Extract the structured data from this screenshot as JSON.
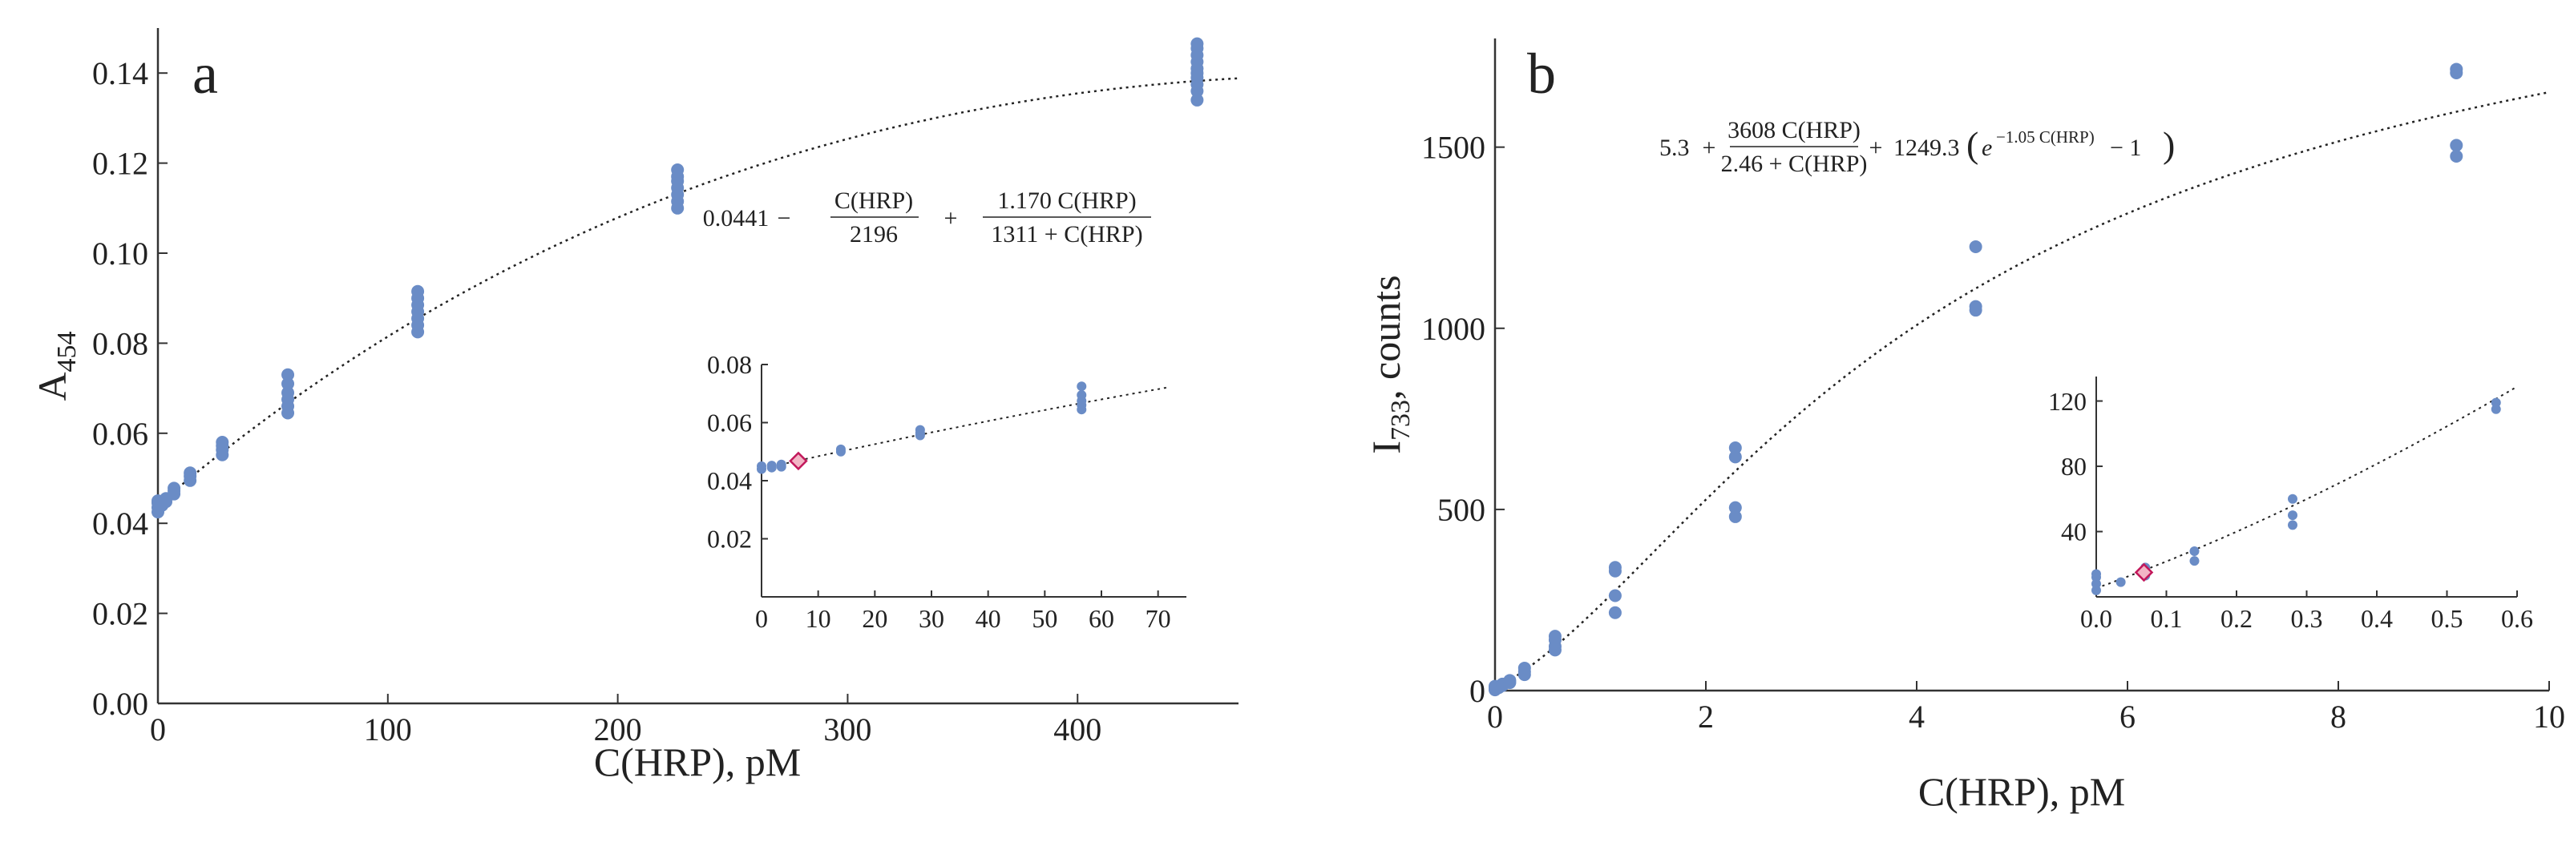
{
  "figure": {
    "colors": {
      "points": "#6a8cc6",
      "fit": "#222222",
      "lod": "#c2185b",
      "axis": "#333333"
    }
  },
  "chart_data": [
    {
      "id": "a",
      "type": "scatter",
      "panel_label": "a",
      "xlabel": "C(HRP), pM",
      "ylabel": {
        "base": "A",
        "sub": "454"
      },
      "xlim": [
        0,
        470
      ],
      "ylim": [
        0,
        0.15
      ],
      "xticks": [
        0,
        100,
        200,
        300,
        400
      ],
      "yticks": [
        0.0,
        0.02,
        0.04,
        0.06,
        0.08,
        0.1,
        0.12,
        0.14
      ],
      "ytick_labels": [
        "0.00",
        "0.02",
        "0.04",
        "0.06",
        "0.08",
        "0.10",
        "0.12",
        "0.14"
      ],
      "equation": {
        "c0": "0.0441",
        "minus": "−",
        "plus": "+",
        "f1_num": "C(HRP)",
        "f1_den": "2196",
        "f2_num": "1.170 C(HRP)",
        "f2_den": "1311 + C(HRP)"
      },
      "fit": {
        "formula": "0.0441 - x/2196 + 1.170*x/(1311+x)"
      },
      "points": [
        [
          0,
          0.0425
        ],
        [
          0,
          0.0435
        ],
        [
          0,
          0.0445
        ],
        [
          0,
          0.045
        ],
        [
          1.8,
          0.044
        ],
        [
          1.8,
          0.0448
        ],
        [
          3.5,
          0.0448
        ],
        [
          3.5,
          0.0455
        ],
        [
          7,
          0.0465
        ],
        [
          7,
          0.0472
        ],
        [
          7,
          0.0478
        ],
        [
          14,
          0.0495
        ],
        [
          14,
          0.0505
        ],
        [
          14,
          0.0512
        ],
        [
          28,
          0.0552
        ],
        [
          28,
          0.0563
        ],
        [
          28,
          0.0572
        ],
        [
          28,
          0.058
        ],
        [
          56.5,
          0.0645
        ],
        [
          56.5,
          0.066
        ],
        [
          56.5,
          0.0675
        ],
        [
          56.5,
          0.069
        ],
        [
          56.5,
          0.071
        ],
        [
          56.5,
          0.073
        ],
        [
          113,
          0.0825
        ],
        [
          113,
          0.084
        ],
        [
          113,
          0.0855
        ],
        [
          113,
          0.087
        ],
        [
          113,
          0.0885
        ],
        [
          113,
          0.09
        ],
        [
          113,
          0.0915
        ],
        [
          226,
          0.11
        ],
        [
          226,
          0.1115
        ],
        [
          226,
          0.113
        ],
        [
          226,
          0.1145
        ],
        [
          226,
          0.116
        ],
        [
          226,
          0.117
        ],
        [
          226,
          0.1185
        ],
        [
          452,
          0.134
        ],
        [
          452,
          0.136
        ],
        [
          452,
          0.1375
        ],
        [
          452,
          0.139
        ],
        [
          452,
          0.14
        ],
        [
          452,
          0.141
        ],
        [
          452,
          0.1425
        ],
        [
          452,
          0.144
        ],
        [
          452,
          0.1455
        ],
        [
          452,
          0.1465
        ]
      ],
      "inset": {
        "xlim": [
          0,
          75
        ],
        "ylim": [
          0,
          0.08
        ],
        "xticks": [
          0,
          10,
          20,
          30,
          40,
          50,
          60,
          70
        ],
        "yticks": [
          0.02,
          0.04,
          0.06,
          0.08
        ],
        "ytick_labels": [
          "0.02",
          "0.04",
          "0.06",
          "0.08"
        ],
        "lod_point": [
          6.5,
          0.0468
        ],
        "points": [
          [
            0,
            0.044
          ],
          [
            0,
            0.045
          ],
          [
            1.8,
            0.0445
          ],
          [
            1.8,
            0.0452
          ],
          [
            3.5,
            0.0448
          ],
          [
            3.5,
            0.0456
          ],
          [
            14,
            0.05
          ],
          [
            14,
            0.0508
          ],
          [
            28,
            0.0556
          ],
          [
            28,
            0.0564
          ],
          [
            28,
            0.0575
          ],
          [
            56.5,
            0.0645
          ],
          [
            56.5,
            0.066
          ],
          [
            56.5,
            0.0675
          ],
          [
            56.5,
            0.0695
          ],
          [
            56.5,
            0.0725
          ]
        ]
      }
    },
    {
      "id": "b",
      "type": "scatter",
      "panel_label": "b",
      "xlabel": "C(HRP), pM",
      "ylabel": {
        "base": "I",
        "sub": "733",
        "suffix": ", counts"
      },
      "xlim": [
        0,
        10
      ],
      "ylim": [
        0,
        1800
      ],
      "xticks": [
        0,
        2,
        4,
        6,
        8,
        10
      ],
      "yticks": [
        0,
        500,
        1000,
        1500
      ],
      "ytick_labels": [
        "0",
        "500",
        "1000",
        "1500"
      ],
      "equation": {
        "c0": "5.3",
        "plus": "+",
        "plus2": "+",
        "minus1": "− 1",
        "f1_num": "3608 C(HRP)",
        "f1_den": "2.46 + C(HRP)",
        "mult": "1249.3",
        "e": "e",
        "exp": "−1.05 C(HRP)"
      },
      "fit": {
        "formula": "5.3 + 3608*x/(2.46+x) + 1249.3*(exp(-1.05*x)-1)"
      },
      "points": [
        [
          0,
          2
        ],
        [
          0,
          5
        ],
        [
          0,
          8
        ],
        [
          0,
          12
        ],
        [
          0.035,
          8
        ],
        [
          0.07,
          14
        ],
        [
          0.07,
          18
        ],
        [
          0.14,
          22
        ],
        [
          0.14,
          28
        ],
        [
          0.28,
          44
        ],
        [
          0.28,
          52
        ],
        [
          0.28,
          62
        ],
        [
          0.57,
          112
        ],
        [
          0.57,
          122
        ],
        [
          0.57,
          140
        ],
        [
          0.57,
          150
        ],
        [
          1.14,
          215
        ],
        [
          1.14,
          262
        ],
        [
          1.14,
          330
        ],
        [
          1.14,
          340
        ],
        [
          2.28,
          480
        ],
        [
          2.28,
          505
        ],
        [
          2.28,
          645
        ],
        [
          2.28,
          670
        ],
        [
          4.56,
          1050
        ],
        [
          4.56,
          1060
        ],
        [
          4.56,
          1225
        ],
        [
          9.12,
          1475
        ],
        [
          9.12,
          1505
        ],
        [
          9.12,
          1705
        ],
        [
          9.12,
          1715
        ]
      ],
      "inset": {
        "xlim": [
          0,
          0.6
        ],
        "ylim": [
          0,
          135
        ],
        "xticks": [
          0.0,
          0.1,
          0.2,
          0.3,
          0.4,
          0.5,
          0.6
        ],
        "xtick_labels": [
          "0.0",
          "0.1",
          "0.2",
          "0.3",
          "0.4",
          "0.5",
          "0.6"
        ],
        "yticks": [
          40,
          80,
          120
        ],
        "ytick_labels": [
          "40",
          "80",
          "120"
        ],
        "lod_point": [
          0.068,
          15
        ],
        "points": [
          [
            0,
            4
          ],
          [
            0,
            8
          ],
          [
            0,
            12
          ],
          [
            0,
            14
          ],
          [
            0.035,
            9
          ],
          [
            0.07,
            13
          ],
          [
            0.07,
            18
          ],
          [
            0.14,
            22
          ],
          [
            0.14,
            28
          ],
          [
            0.28,
            44
          ],
          [
            0.28,
            50
          ],
          [
            0.28,
            60
          ],
          [
            0.57,
            115
          ],
          [
            0.57,
            119
          ]
        ]
      }
    }
  ]
}
